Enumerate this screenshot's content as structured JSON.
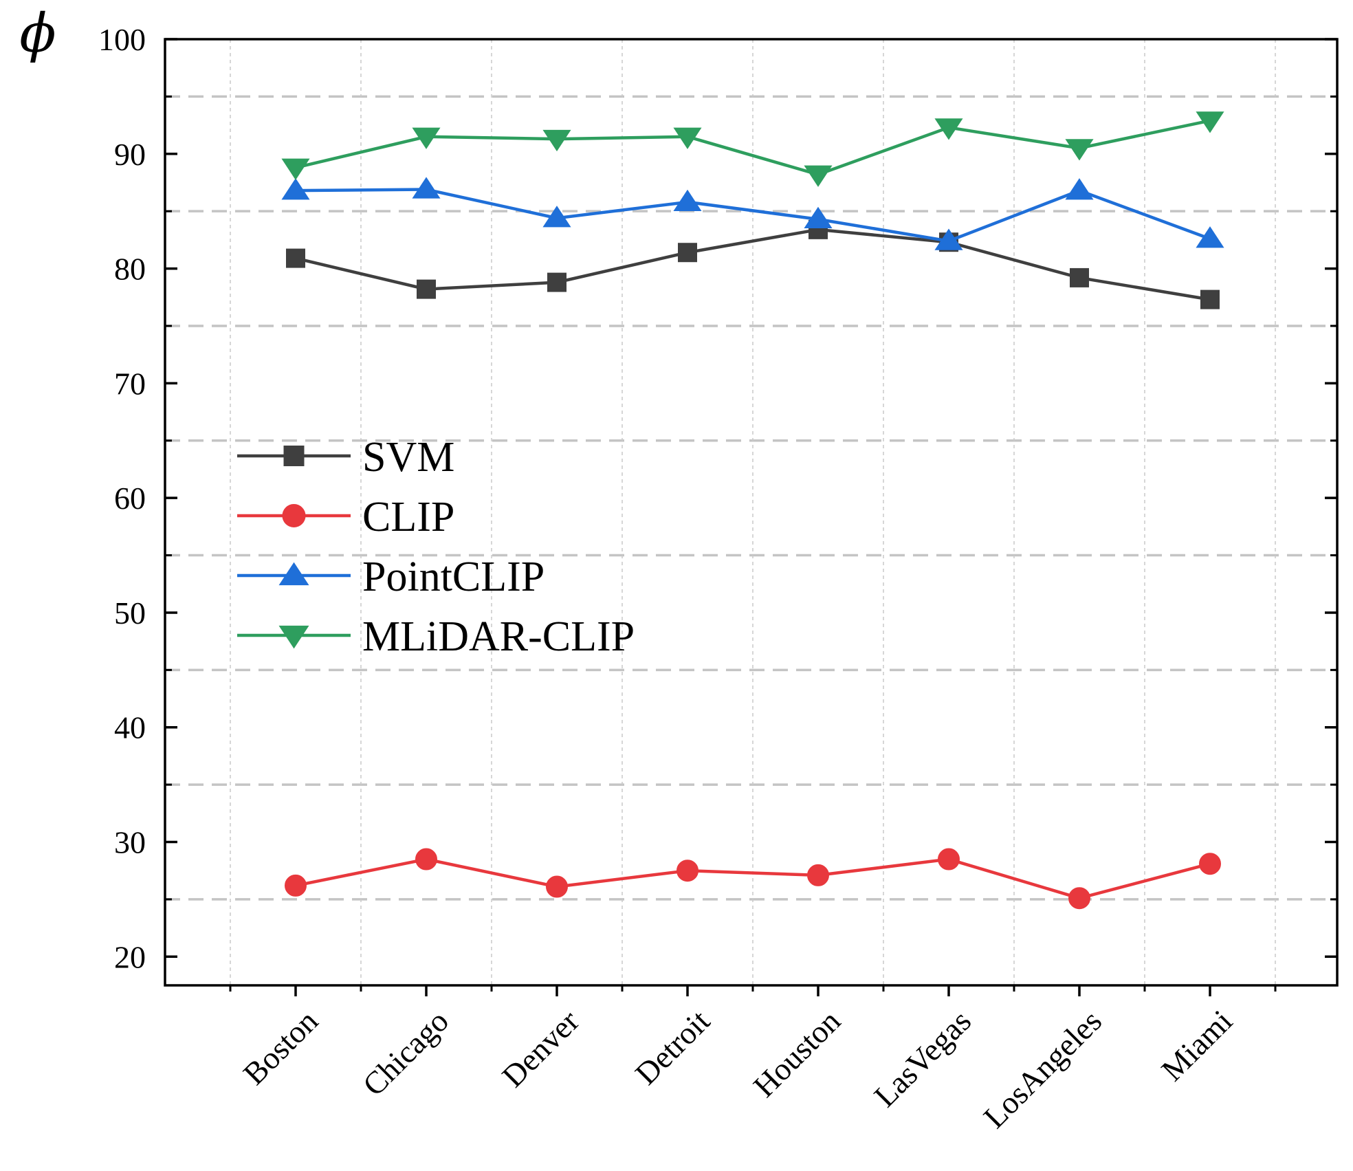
{
  "chart_data": {
    "type": "line",
    "title": "",
    "xlabel": "",
    "ylabel": "ϕ",
    "categories": [
      "Boston",
      "Chicago",
      "Denver",
      "Detroit",
      "Houston",
      "LasVegas",
      "LosAngeles",
      "Miami"
    ],
    "ylim": [
      17.5,
      100
    ],
    "yticks": [
      20,
      30,
      40,
      50,
      60,
      70,
      80,
      90,
      100
    ],
    "grid": true,
    "legend_position": "center-left",
    "series": [
      {
        "name": "SVM",
        "color": "#3f3f3f",
        "marker": "square",
        "values": [
          80.9,
          78.2,
          78.8,
          81.4,
          83.4,
          82.3,
          79.2,
          77.3
        ]
      },
      {
        "name": "CLIP",
        "color": "#e8383d",
        "marker": "circle",
        "values": [
          26.2,
          28.5,
          26.1,
          27.5,
          27.1,
          28.5,
          25.1,
          28.1
        ]
      },
      {
        "name": "PointCLIP",
        "color": "#1f6fd8",
        "marker": "triangle-up",
        "values": [
          86.8,
          86.9,
          84.4,
          85.8,
          84.3,
          82.4,
          86.8,
          82.6
        ]
      },
      {
        "name": "MLiDAR-CLIP",
        "color": "#2e9e5e",
        "marker": "triangle-down",
        "values": [
          88.8,
          91.5,
          91.3,
          91.5,
          88.2,
          92.3,
          90.5,
          92.9
        ]
      }
    ]
  }
}
